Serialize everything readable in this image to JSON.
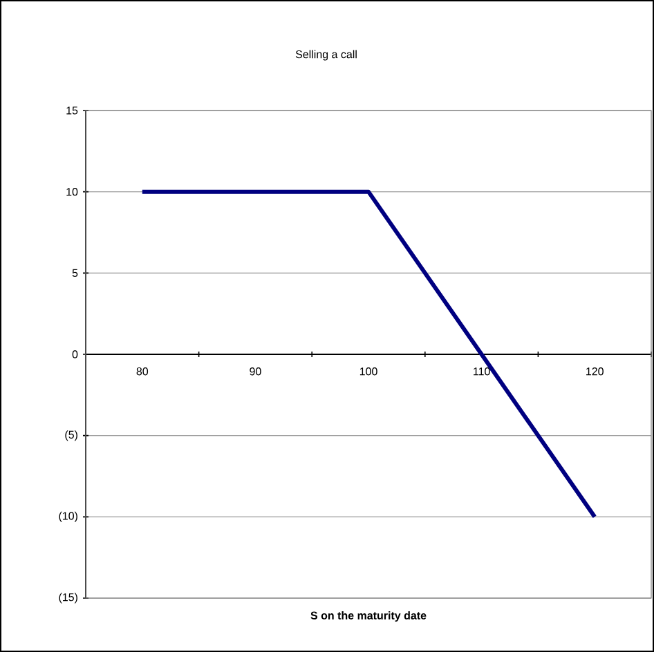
{
  "chart_data": {
    "type": "line",
    "title": "Selling a call",
    "xlabel": "S on the maturity date",
    "categories": [
      "80",
      "90",
      "100",
      "110",
      "120"
    ],
    "series": [
      {
        "color": "#000080",
        "values": [
          10,
          10,
          10,
          0,
          -10
        ]
      }
    ],
    "ylim": [
      -15,
      15
    ],
    "yticks": [
      {
        "value": -15,
        "label": "(15)"
      },
      {
        "value": -10,
        "label": "(10)"
      },
      {
        "value": -5,
        "label": "(5)"
      },
      0,
      5,
      10,
      15
    ],
    "grid": "y",
    "marker": "none",
    "line_style": "solid"
  }
}
